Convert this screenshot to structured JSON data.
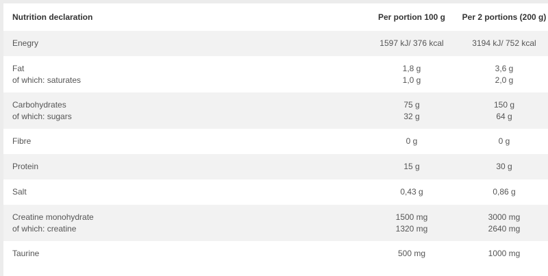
{
  "header": {
    "label": "Nutrition declaration",
    "col1": "Per portion 100 g",
    "col2": "Per 2 portions (200 g)"
  },
  "rows": [
    {
      "lines": [
        {
          "label": "Enegry",
          "v1": "1597 kJ/ 376 kcal",
          "v2": "3194 kJ/ 752 kcal"
        }
      ]
    },
    {
      "lines": [
        {
          "label": "Fat",
          "v1": "1,8 g",
          "v2": "3,6 g"
        },
        {
          "label": "of which: saturates",
          "v1": "1,0 g",
          "v2": "2,0 g"
        }
      ]
    },
    {
      "lines": [
        {
          "label": "Carbohydrates",
          "v1": "75 g",
          "v2": "150 g"
        },
        {
          "label": "of which: sugars",
          "v1": "32 g",
          "v2": "64 g"
        }
      ]
    },
    {
      "lines": [
        {
          "label": "Fibre",
          "v1": "0 g",
          "v2": "0 g"
        }
      ]
    },
    {
      "lines": [
        {
          "label": "Protein",
          "v1": "15 g",
          "v2": "30 g"
        }
      ]
    },
    {
      "lines": [
        {
          "label": "Salt",
          "v1": "0,43 g",
          "v2": "0,86 g"
        }
      ]
    },
    {
      "lines": [
        {
          "label": "Creatine monohydrate",
          "v1": "1500 mg",
          "v2": "3000 mg"
        },
        {
          "label": "of which: creatine",
          "v1": "1320 mg",
          "v2": "2640 mg"
        }
      ]
    },
    {
      "lines": [
        {
          "label": "Taurine",
          "v1": "500 mg",
          "v2": "1000 mg"
        }
      ]
    }
  ]
}
